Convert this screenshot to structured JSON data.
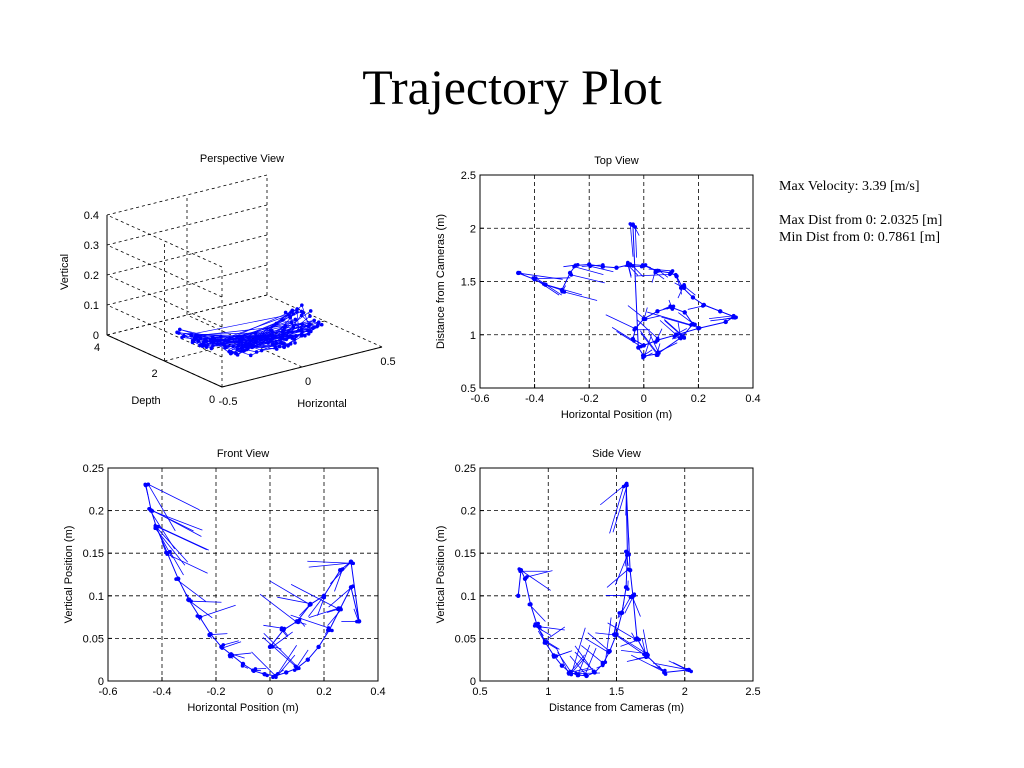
{
  "slide_title": "Trajectory Plot",
  "stats": {
    "max_velocity": "Max Velocity:   3.39 [m/s]",
    "max_dist": "Max Dist from 0: 2.0325 [m]",
    "min_dist": "Min Dist from 0: 0.7861 [m]"
  },
  "colors": {
    "trajectory": "#0000ff",
    "axes": "#000000",
    "grid": "#000000"
  },
  "chart_data": [
    {
      "id": "perspective",
      "type": "line",
      "title": "Perspective View",
      "xlabel": "Horizontal",
      "ylabel": "Depth",
      "zlabel": "Vertical",
      "xlim": [
        -0.5,
        0.5
      ],
      "ylim": [
        0,
        4
      ],
      "zlim": [
        0,
        0.4
      ],
      "xticks": [
        "-0.5",
        "0",
        "0.5"
      ],
      "yticks": [
        "0",
        "2",
        "4"
      ],
      "zticks": [
        "0",
        "0.1",
        "0.2",
        "0.3",
        "0.4"
      ],
      "grid": true,
      "marker": "dot",
      "series_shape": "bowl-shaped trajectory cloud"
    },
    {
      "id": "top",
      "type": "line",
      "title": "Top View",
      "xlabel": "Horizontal Position (m)",
      "ylabel": "Distance from Cameras (m)",
      "xlim": [
        -0.6,
        0.4
      ],
      "ylim": [
        0.5,
        2.5
      ],
      "xticks": [
        "-0.6",
        "-0.4",
        "-0.2",
        "0",
        "0.2",
        "0.4"
      ],
      "yticks": [
        "0.5",
        "1",
        "1.5",
        "2",
        "2.5"
      ],
      "grid": true,
      "marker": "dot",
      "x": [
        -0.46,
        -0.4,
        -0.36,
        -0.3,
        -0.27,
        -0.25,
        -0.2,
        -0.15,
        -0.1,
        -0.05,
        0.0,
        0.05,
        0.1,
        0.12,
        0.14,
        0.18,
        0.22,
        0.28,
        0.33,
        0.3,
        0.2,
        0.12,
        0.05,
        0.0,
        -0.04,
        -0.03,
        0.0,
        0.05,
        0.1,
        0.15,
        0.18,
        0.14,
        0.05,
        0.0,
        -0.02,
        -0.04
      ],
      "y": [
        1.58,
        1.52,
        1.47,
        1.42,
        1.58,
        1.65,
        1.66,
        1.64,
        1.63,
        1.66,
        1.65,
        1.6,
        1.58,
        1.55,
        1.45,
        1.35,
        1.28,
        1.22,
        1.17,
        1.12,
        1.06,
        1.0,
        0.95,
        0.9,
        0.96,
        1.06,
        1.15,
        1.22,
        1.26,
        1.21,
        1.1,
        0.98,
        0.82,
        0.8,
        0.88,
        2.03
      ]
    },
    {
      "id": "front",
      "type": "line",
      "title": "Front View",
      "xlabel": "Horizontal Position (m)",
      "ylabel": "Vertical Position (m)",
      "xlim": [
        -0.6,
        0.4
      ],
      "ylim": [
        0,
        0.25
      ],
      "xticks": [
        "-0.6",
        "-0.4",
        "-0.2",
        "0",
        "0.2",
        "0.4"
      ],
      "yticks": [
        "0",
        "0.05",
        "0.1",
        "0.15",
        "0.2",
        "0.25"
      ],
      "grid": true,
      "marker": "dot",
      "x": [
        -0.46,
        -0.44,
        -0.42,
        -0.38,
        -0.34,
        -0.3,
        -0.26,
        -0.22,
        -0.18,
        -0.14,
        -0.1,
        -0.06,
        -0.02,
        0.02,
        0.06,
        0.1,
        0.14,
        0.18,
        0.22,
        0.26,
        0.3,
        0.33,
        0.3,
        0.26,
        0.2,
        0.15,
        0.1,
        0.05,
        0.0
      ],
      "y": [
        0.23,
        0.2,
        0.18,
        0.15,
        0.12,
        0.095,
        0.075,
        0.055,
        0.04,
        0.03,
        0.02,
        0.012,
        0.008,
        0.006,
        0.01,
        0.015,
        0.025,
        0.04,
        0.06,
        0.085,
        0.11,
        0.07,
        0.14,
        0.13,
        0.1,
        0.09,
        0.07,
        0.06,
        0.04
      ]
    },
    {
      "id": "side",
      "type": "line",
      "title": "Side View",
      "xlabel": "Distance from Cameras (m)",
      "ylabel": "Vertical Position (m)",
      "xlim": [
        0.5,
        2.5
      ],
      "ylim": [
        0,
        0.25
      ],
      "xticks": [
        "0.5",
        "1",
        "1.5",
        "2",
        "2.5"
      ],
      "yticks": [
        "0",
        "0.05",
        "0.1",
        "0.15",
        "0.2",
        "0.25"
      ],
      "grid": true,
      "marker": "dot",
      "x": [
        0.78,
        0.8,
        0.83,
        0.87,
        0.92,
        0.98,
        1.04,
        1.1,
        1.16,
        1.22,
        1.28,
        1.34,
        1.4,
        1.45,
        1.5,
        1.54,
        1.57,
        1.58,
        1.57,
        1.6,
        1.62,
        1.65,
        1.72,
        1.85,
        2.03
      ],
      "y": [
        0.1,
        0.13,
        0.12,
        0.09,
        0.065,
        0.045,
        0.03,
        0.018,
        0.01,
        0.007,
        0.006,
        0.01,
        0.02,
        0.035,
        0.055,
        0.08,
        0.11,
        0.15,
        0.23,
        0.13,
        0.1,
        0.05,
        0.03,
        0.01,
        0.013
      ]
    }
  ]
}
